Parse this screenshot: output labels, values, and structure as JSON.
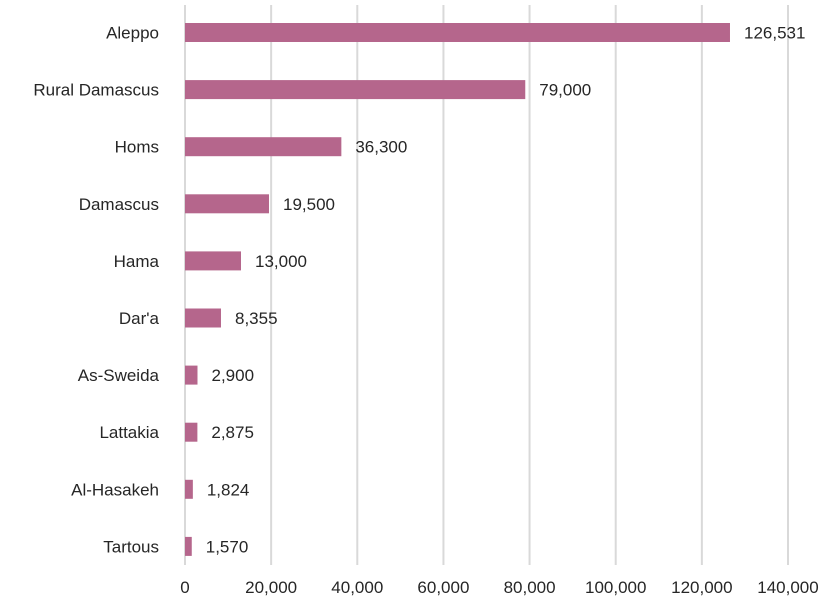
{
  "chart_data": {
    "type": "bar",
    "orientation": "horizontal",
    "categories": [
      "Aleppo",
      "Rural Damascus",
      "Homs",
      "Damascus",
      "Hama",
      "Dar'a",
      "As-Sweida",
      "Lattakia",
      "Al-Hasakeh",
      "Tartous"
    ],
    "values": [
      126531,
      79000,
      36300,
      19500,
      13000,
      8355,
      2900,
      2875,
      1824,
      1570
    ],
    "value_labels": [
      "126,531",
      "79,000",
      "36,300",
      "19,500",
      "13,000",
      "8,355",
      "2,900",
      "2,875",
      "1,824",
      "1,570"
    ],
    "x_ticks": [
      "0",
      "20,000",
      "40,000",
      "60,000",
      "80,000",
      "100,000",
      "120,000",
      "140,000"
    ],
    "xlim": [
      0,
      140000
    ],
    "grid": "vertical",
    "legend": "none",
    "colors": {
      "bar": "#b5668c",
      "grid": "#d9d9d9",
      "text": "#262626"
    }
  }
}
